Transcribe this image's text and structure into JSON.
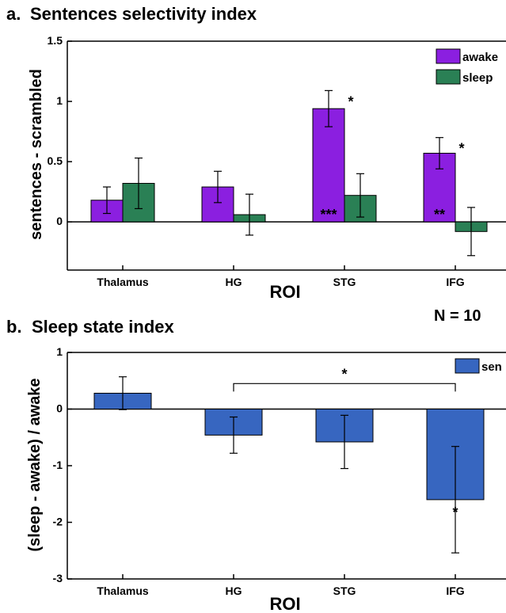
{
  "n_label": "N = 10",
  "colors": {
    "awake": "#8b1fe0",
    "sleep": "#2a8055",
    "sentences": "#3766c0"
  },
  "chart_data": [
    {
      "panel": "a.",
      "title": "Sentences selectivity index",
      "type": "bar",
      "xlabel": "ROI",
      "ylabel": "sentences - scrambled",
      "categories": [
        "Thalamus",
        "HG",
        "STG",
        "IFG"
      ],
      "ylim": [
        -0.4,
        1.5
      ],
      "yticks": [
        0,
        0.5,
        1,
        1.5
      ],
      "ytick_labels": [
        "0",
        "0.5",
        "1",
        "1.5"
      ],
      "legend_position": "top-right",
      "series": [
        {
          "name": "awake",
          "color_key": "awake",
          "values": [
            0.18,
            0.29,
            0.94,
            0.57
          ],
          "errors": [
            0.11,
            0.13,
            0.15,
            0.13
          ]
        },
        {
          "name": "sleep",
          "color_key": "sleep",
          "values": [
            0.32,
            0.06,
            0.22,
            -0.08
          ],
          "errors": [
            0.21,
            0.17,
            0.18,
            0.2
          ]
        }
      ],
      "annotations": [
        {
          "category": "STG",
          "series": "awake",
          "text": "*",
          "place": "above-right"
        },
        {
          "category": "IFG",
          "series": "awake",
          "text": "*",
          "place": "above-right"
        },
        {
          "category": "STG",
          "series": "awake",
          "text": "***",
          "place": "inside-bottom"
        },
        {
          "category": "IFG",
          "series": "awake",
          "text": "**",
          "place": "inside-bottom"
        }
      ]
    },
    {
      "panel": "b.",
      "title": "Sleep state index",
      "type": "bar",
      "xlabel": "ROI",
      "ylabel": "(sleep - awake) / awake",
      "categories": [
        "Thalamus",
        "HG",
        "STG",
        "IFG"
      ],
      "ylim": [
        -3,
        1
      ],
      "yticks": [
        1,
        0,
        -1,
        -2,
        -3
      ],
      "ytick_labels": [
        "1",
        "0",
        "-1",
        "-2",
        "-3"
      ],
      "legend_position": "top-right",
      "series": [
        {
          "name": "sen",
          "color_key": "sentences",
          "values": [
            0.28,
            -0.46,
            -0.58,
            -1.6
          ],
          "errors": [
            0.29,
            0.32,
            0.47,
            0.94
          ]
        }
      ],
      "annotations": [
        {
          "category": "IFG",
          "series": "sen",
          "text": "*",
          "place": "above-top"
        }
      ],
      "bracket": {
        "from": "HG",
        "to": "IFG",
        "value": 0.45,
        "text": "*"
      }
    }
  ]
}
